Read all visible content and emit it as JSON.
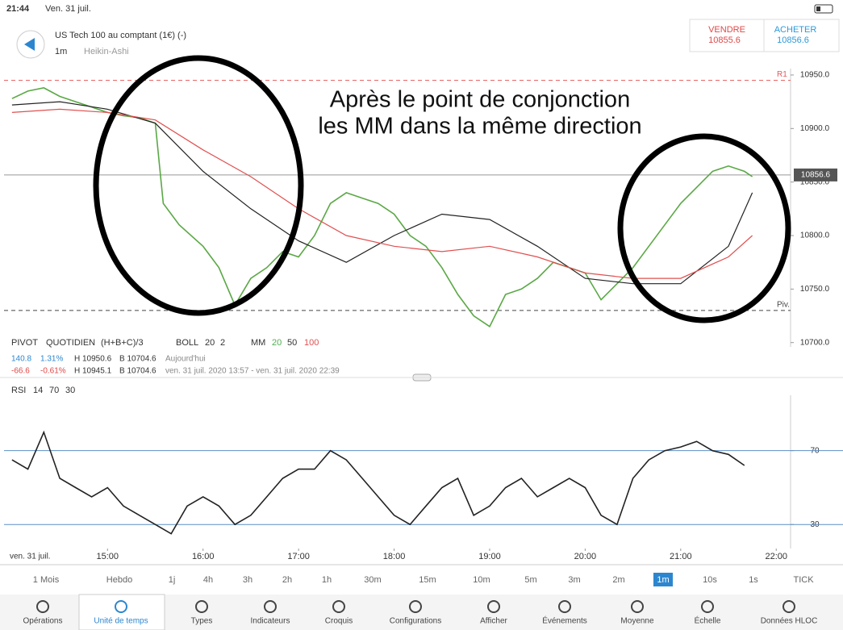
{
  "status_bar": {
    "time": "21:44",
    "date": "Ven. 31 juil."
  },
  "header": {
    "instrument": "US Tech 100 au comptant (1€) (-)",
    "interval": "1m",
    "chart_style": "Heikin-Ashi",
    "sell": {
      "label": "VENDRE",
      "price": 10855.6
    },
    "buy": {
      "label": "ACHETER",
      "price": 10856.6
    }
  },
  "annotation": [
    "Après le point de conjonction",
    "les MM dans la même direction"
  ],
  "legend": {
    "pivot": [
      "PIVOT",
      "QUOTIDIEN",
      "(H+B+C)/3"
    ],
    "boll": [
      "BOLL",
      "20",
      "2"
    ],
    "mm": [
      "MM",
      "20",
      "50",
      "100"
    ]
  },
  "info_rows": [
    [
      "140.8",
      "1.31%",
      "H 10950.6",
      "B 10704.6",
      "Aujourd'hui"
    ],
    [
      "-66.6",
      "-0.61%",
      "H 10945.1",
      "B 10704.6",
      "ven. 31 juil. 2020 13:57 - ven. 31 juil. 2020 22:39"
    ]
  ],
  "rsi_legend": [
    "RSI",
    "14",
    "70",
    "30"
  ],
  "date_label": "ven. 31 juil.",
  "chart_data": [
    {
      "type": "line",
      "xlim": [
        835,
        1329
      ],
      "ylim": [
        10696,
        10956
      ],
      "yticks": [
        {
          "value": 10700,
          "label": "10700.0"
        },
        {
          "value": 10750,
          "label": "10750.0"
        },
        {
          "value": 10800,
          "label": "10800.0"
        },
        {
          "value": 10850,
          "label": "10850.0"
        },
        {
          "value": 10900,
          "label": "10900.0"
        },
        {
          "value": 10950,
          "label": "10950.0"
        }
      ],
      "levels": [
        {
          "label": "R1",
          "value": 10945,
          "color": "#e85858"
        },
        {
          "label": "Piv.",
          "value": 10730,
          "color": "#444"
        }
      ],
      "last_price": 10856.6,
      "series": [
        {
          "color": "#5aa845",
          "x": [
            840,
            850,
            860,
            870,
            880,
            890,
            900,
            910,
            920,
            930,
            935,
            945,
            960,
            970,
            980,
            990,
            1000,
            1010,
            1020,
            1030,
            1040,
            1050,
            1060,
            1070,
            1080,
            1090,
            1100,
            1110,
            1120,
            1130,
            1140,
            1150,
            1160,
            1170,
            1180,
            1190,
            1200,
            1210,
            1220,
            1230,
            1240,
            1250,
            1260,
            1270,
            1280,
            1290,
            1300,
            1305
          ],
          "values": [
            10928,
            10935,
            10938,
            10930,
            10925,
            10920,
            10915,
            10912,
            10910,
            10905,
            10830,
            10810,
            10790,
            10770,
            10735,
            10760,
            10770,
            10785,
            10780,
            10800,
            10830,
            10840,
            10835,
            10830,
            10820,
            10800,
            10790,
            10770,
            10745,
            10725,
            10715,
            10745,
            10750,
            10760,
            10775,
            10770,
            10765,
            10740,
            10755,
            10770,
            10790,
            10810,
            10830,
            10845,
            10860,
            10865,
            10860,
            10855
          ]
        },
        {
          "color": "#222",
          "x": [
            840,
            870,
            900,
            930,
            960,
            990,
            1020,
            1050,
            1080,
            1110,
            1140,
            1170,
            1200,
            1230,
            1260,
            1290,
            1305
          ],
          "values": [
            10922,
            10925,
            10918,
            10905,
            10860,
            10825,
            10795,
            10775,
            10800,
            10820,
            10815,
            10790,
            10760,
            10755,
            10755,
            10790,
            10840
          ]
        },
        {
          "color": "#e05050",
          "x": [
            840,
            870,
            900,
            930,
            960,
            990,
            1020,
            1050,
            1080,
            1110,
            1140,
            1170,
            1200,
            1230,
            1260,
            1290,
            1305
          ],
          "values": [
            10915,
            10918,
            10915,
            10908,
            10880,
            10855,
            10825,
            10800,
            10790,
            10785,
            10790,
            10780,
            10765,
            10760,
            10760,
            10780,
            10800
          ]
        }
      ]
    },
    {
      "type": "line",
      "xlim": [
        835,
        1329
      ],
      "ylim": [
        17,
        100
      ],
      "yticks": [
        30,
        70
      ],
      "xticks": [
        {
          "value": 900,
          "label": "15:00"
        },
        {
          "value": 960,
          "label": "16:00"
        },
        {
          "value": 1020,
          "label": "17:00"
        },
        {
          "value": 1080,
          "label": "18:00"
        },
        {
          "value": 1140,
          "label": "19:00"
        },
        {
          "value": 1200,
          "label": "20:00"
        },
        {
          "value": 1260,
          "label": "21:00"
        },
        {
          "value": 1320,
          "label": "22:00"
        }
      ],
      "series": [
        {
          "color": "#222",
          "x": [
            840,
            850,
            860,
            870,
            880,
            890,
            900,
            910,
            920,
            930,
            940,
            950,
            960,
            970,
            980,
            990,
            1000,
            1010,
            1020,
            1030,
            1040,
            1050,
            1060,
            1070,
            1080,
            1090,
            1100,
            1110,
            1120,
            1130,
            1140,
            1150,
            1160,
            1170,
            1180,
            1190,
            1200,
            1210,
            1220,
            1230,
            1240,
            1250,
            1260,
            1270,
            1280,
            1290,
            1300
          ],
          "values": [
            65,
            60,
            80,
            55,
            50,
            45,
            50,
            40,
            35,
            30,
            25,
            40,
            45,
            40,
            30,
            35,
            45,
            55,
            60,
            60,
            70,
            65,
            55,
            45,
            35,
            30,
            40,
            50,
            55,
            35,
            40,
            50,
            55,
            45,
            50,
            55,
            50,
            35,
            30,
            55,
            65,
            70,
            72,
            75,
            70,
            68,
            62
          ]
        }
      ]
    }
  ],
  "timeframes": [
    "1 Mois",
    "Hebdo",
    "1j",
    "4h",
    "3h",
    "2h",
    "1h",
    "30m",
    "15m",
    "10m",
    "5m",
    "3m",
    "2m",
    "1m",
    "10s",
    "1s",
    "TICK"
  ],
  "active_timeframe": "1m",
  "tabs": [
    "Opérations",
    "Unité de temps",
    "Types",
    "Indicateurs",
    "Croquis",
    "Configurations",
    "Afficher",
    "Événements",
    "Moyenne",
    "Échelle",
    "Données HLOC"
  ],
  "active_tab": "Unité de temps"
}
